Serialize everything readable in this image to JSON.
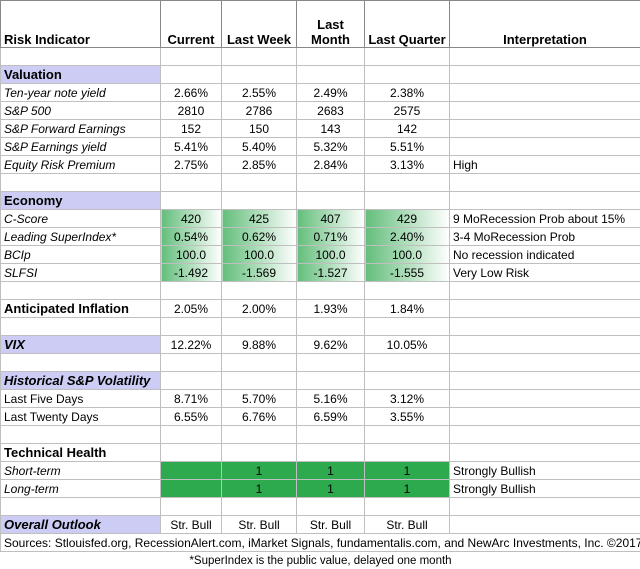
{
  "header": {
    "columns": [
      "Risk Indicator",
      "Current",
      "Last Week",
      "Last Month",
      "Last Quarter",
      "Interpretation"
    ]
  },
  "sections": [
    {
      "title": "Valuation",
      "rows": [
        {
          "label": "Ten-year note yield",
          "values": [
            "2.66%",
            "2.55%",
            "2.49%",
            "2.38%"
          ]
        },
        {
          "label": "S&P 500",
          "values": [
            "2810",
            "2786",
            "2683",
            "2575"
          ]
        },
        {
          "label": "S&P Forward Earnings",
          "values": [
            "152",
            "150",
            "143",
            "142"
          ]
        },
        {
          "label": "S&P Earnings yield",
          "values": [
            "5.41%",
            "5.40%",
            "5.32%",
            "5.51%"
          ]
        },
        {
          "label": "Equity Risk Premium",
          "values": [
            "2.75%",
            "2.85%",
            "2.84%",
            "3.13%"
          ],
          "interpretation": "High"
        }
      ]
    },
    {
      "title": "Economy",
      "rows": [
        {
          "label": "C-Score",
          "values": [
            "420",
            "425",
            "407",
            "429"
          ],
          "interpretation": "9 MoRecession Prob about 15%"
        },
        {
          "label": "Leading SuperIndex*",
          "values": [
            "0.54%",
            "0.62%",
            "0.71%",
            "2.40%"
          ],
          "interpretation": "3-4 MoRecession Prob"
        },
        {
          "label": "BCIp",
          "values": [
            "100.0",
            "100.0",
            "100.0",
            "100.0"
          ],
          "interpretation": "No recession indicated"
        },
        {
          "label": "SLFSI",
          "values": [
            "-1.492",
            "-1.569",
            "-1.527",
            "-1.555"
          ],
          "interpretation": "Very Low Risk"
        }
      ]
    },
    {
      "title": "Anticipated Inflation",
      "values": [
        "2.05%",
        "2.00%",
        "1.93%",
        "1.84%"
      ]
    },
    {
      "title": "VIX",
      "values": [
        "12.22%",
        "9.88%",
        "9.62%",
        "10.05%"
      ]
    },
    {
      "title": "Historical  S&P Volatility",
      "rows": [
        {
          "label": "Last Five Days",
          "values": [
            "8.71%",
            "5.70%",
            "5.16%",
            "3.12%"
          ]
        },
        {
          "label": "Last Twenty Days",
          "values": [
            "6.55%",
            "6.76%",
            "6.59%",
            "3.55%"
          ]
        }
      ]
    },
    {
      "title": "Technical Health",
      "rows": [
        {
          "label": "Short-term",
          "values": [
            null,
            "1",
            "1",
            "1"
          ],
          "interpretation": "Strongly Bullish"
        },
        {
          "label": "Long-term",
          "values": [
            null,
            "1",
            "1",
            "1"
          ],
          "interpretation": "Strongly Bullish"
        }
      ]
    },
    {
      "title": "Overall Outlook",
      "values": [
        "Str. Bull",
        "Str. Bull",
        "Str. Bull",
        "Str. Bull"
      ]
    }
  ],
  "sources": "Sources: Stlouisfed.org, RecessionAlert.com, iMarket Signals, fundamentalis.com, and NewArc Investments, Inc. ©2017",
  "footnote": "*SuperIndex is the public value, delayed one month"
}
